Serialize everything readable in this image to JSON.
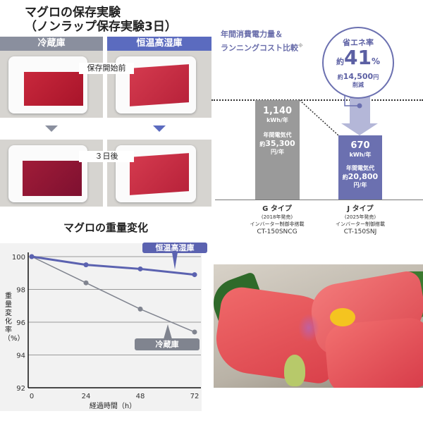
{
  "storage_test": {
    "title_line1": "マグロの保存実験",
    "title_line2": "（ノンラップ保存実験3日）",
    "col_fridge": "冷蔵庫",
    "col_humid": "恒温高湿庫",
    "label_before": "保存開始前",
    "label_after": "３日後",
    "colors": {
      "fridge": "#8a8f9e",
      "humid": "#5b6bbf"
    }
  },
  "energy": {
    "title_line1": "年間消費電力量＆",
    "title_line2": "ランニングコスト比較",
    "note_mark": "※",
    "badge": {
      "label": "省エネ率",
      "approx": "約",
      "rate": "41",
      "unit": "%",
      "saving_prefix": "約",
      "saving": "14,500",
      "saving_unit": "円",
      "saving_suffix": "削減"
    },
    "colors": {
      "g": "#9a9a9a",
      "j": "#6b70b0",
      "arrow": "#b4b7d8"
    }
  },
  "weight_chart_title": "マグロの重量変化",
  "chart_data": [
    {
      "type": "line",
      "title": "マグロの重量変化",
      "xlabel": "経過時間（h）",
      "ylabel": "重量変化率（%）",
      "x": [
        0,
        24,
        48,
        72
      ],
      "xticks": [
        "0",
        "24",
        "48",
        "72"
      ],
      "yticks": [
        "92",
        "94",
        "96",
        "98",
        "100"
      ],
      "ylim": [
        92,
        100
      ],
      "grid": true,
      "series": [
        {
          "name": "恒温高湿庫",
          "values": [
            100,
            99.5,
            99.25,
            98.9
          ],
          "color": "#5b62b0"
        },
        {
          "name": "冷蔵庫",
          "values": [
            100,
            98.4,
            96.8,
            95.4
          ],
          "color": "#80848f"
        }
      ]
    },
    {
      "type": "bar",
      "categories": [
        "G タイプ",
        "J タイプ"
      ],
      "values": [
        1140,
        670
      ],
      "unit": "kWh/年",
      "bars": [
        {
          "value": "1,140",
          "unit": "kWh/年",
          "cost_label": "年間電気代",
          "cost_prefix": "約",
          "cost": "35,300",
          "cost_unit": "円/年",
          "name": "G タイプ",
          "year": "(2018年発売)",
          "inverter": "インバーター制御非搭載",
          "model": "CT-150SNCG"
        },
        {
          "value": "670",
          "unit": "kWh/年",
          "cost_label": "年間電気代",
          "cost_prefix": "約",
          "cost": "20,800",
          "cost_unit": "円/年",
          "name": "J タイプ",
          "year": "(2025年発売)",
          "inverter": "インバーター制御搭載",
          "model": "CT-150SNJ"
        }
      ]
    }
  ]
}
